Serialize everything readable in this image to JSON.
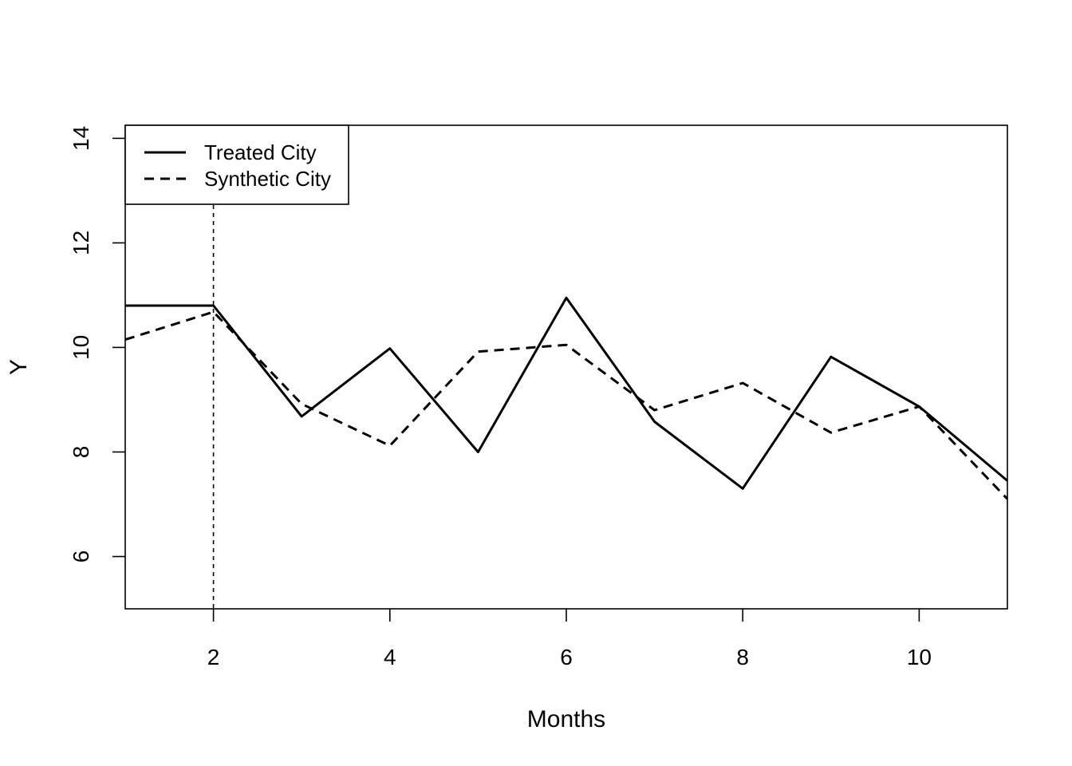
{
  "chart_data": {
    "type": "line",
    "title": "",
    "xlabel": "Months",
    "ylabel": "Y",
    "xlim": [
      1,
      11
    ],
    "ylim": [
      5,
      14.25
    ],
    "x_ticks": [
      2,
      4,
      6,
      8,
      10
    ],
    "y_ticks": [
      6,
      8,
      10,
      12,
      14
    ],
    "x_tick_labels": [
      "2",
      "4",
      "6",
      "8",
      "10"
    ],
    "y_tick_labels": [
      "6",
      "8",
      "10",
      "12",
      "14"
    ],
    "grid": false,
    "legend_position": "top-left",
    "vline": {
      "x": 2,
      "style": "dotted"
    },
    "x": [
      1,
      2,
      3,
      4,
      5,
      6,
      7,
      8,
      9,
      10,
      11
    ],
    "series": [
      {
        "name": "Treated City",
        "style": "solid",
        "color": "#000000",
        "values": [
          10.8,
          10.8,
          8.68,
          9.98,
          8.0,
          10.95,
          8.58,
          7.3,
          9.82,
          8.87,
          7.45
        ]
      },
      {
        "name": "Synthetic City",
        "style": "dashed",
        "color": "#000000",
        "values": [
          10.15,
          10.68,
          8.92,
          8.12,
          9.92,
          10.05,
          8.8,
          9.32,
          8.37,
          8.87,
          7.1
        ]
      }
    ]
  }
}
